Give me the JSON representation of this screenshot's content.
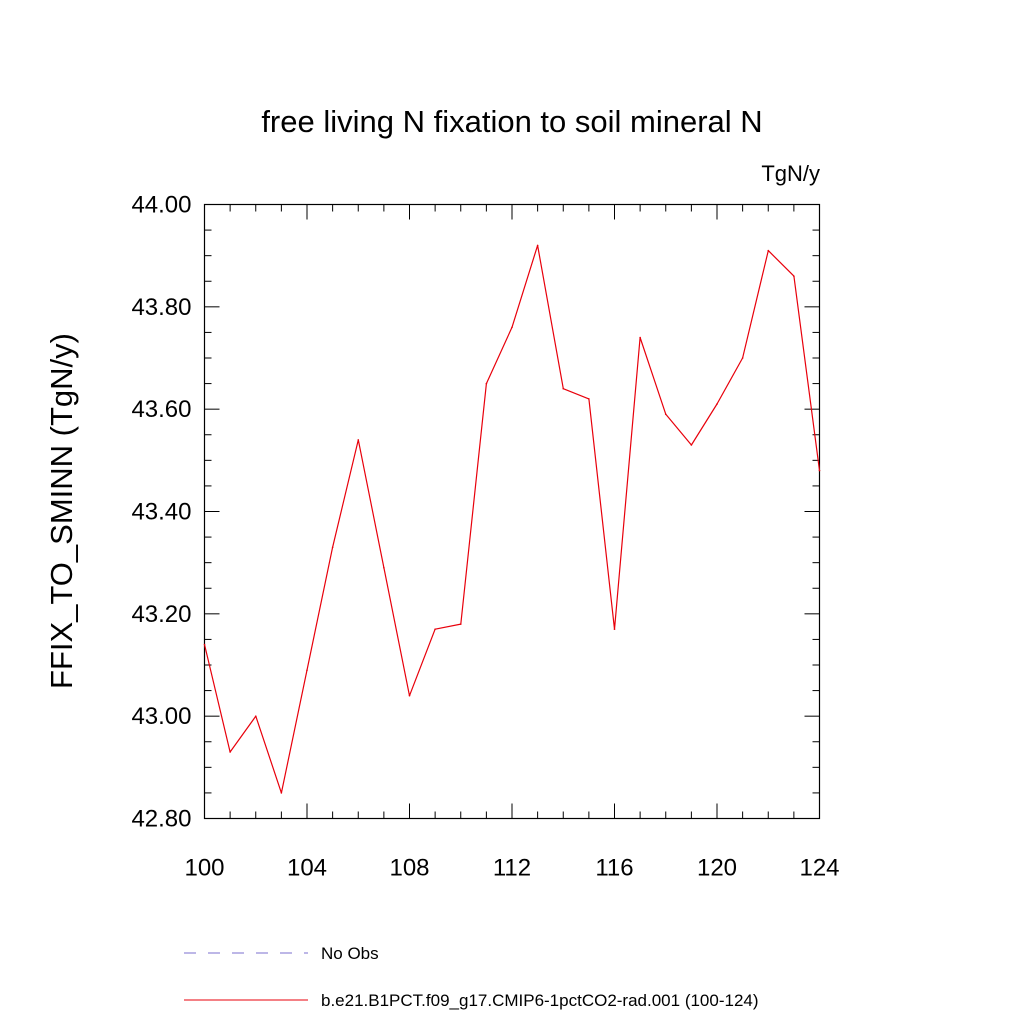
{
  "chart_data": {
    "type": "line",
    "title": "free living N fixation to soil mineral N",
    "units_label": "TgN/y",
    "ylabel": "FFIX_TO_SMINN  (TgN/y)",
    "xlabel": "",
    "xlim": [
      100,
      124
    ],
    "ylim": [
      42.8,
      44.0
    ],
    "xticks": [
      100,
      104,
      108,
      112,
      116,
      120,
      124
    ],
    "xtick_labels": [
      "100",
      "104",
      "108",
      "112",
      "116",
      "120",
      "124"
    ],
    "yticks": [
      42.8,
      43.0,
      43.2,
      43.4,
      43.6,
      43.8,
      44.0
    ],
    "ytick_labels": [
      "42.80",
      "43.00",
      "43.20",
      "43.40",
      "43.60",
      "43.80",
      "44.00"
    ],
    "grid": false,
    "legend_placement": "bottom",
    "series": [
      {
        "name": "b.e21.B1PCT.f09_g17.CMIP6-1pctCO2-rad.001 (100-124)",
        "color": "#e8000b",
        "style": "solid",
        "x": [
          100,
          101,
          102,
          103,
          104,
          105,
          106,
          107,
          108,
          109,
          110,
          111,
          112,
          113,
          114,
          115,
          116,
          117,
          118,
          119,
          120,
          121,
          122,
          123,
          124
        ],
        "y": [
          43.14,
          42.93,
          43.0,
          42.85,
          43.09,
          43.33,
          43.54,
          43.29,
          43.04,
          43.17,
          43.18,
          43.65,
          43.76,
          43.92,
          43.64,
          43.62,
          43.17,
          43.74,
          43.59,
          43.53,
          43.61,
          43.7,
          43.91,
          43.86,
          43.48
        ]
      }
    ],
    "legend": [
      {
        "label": "No Obs",
        "color": "#7b6fcf",
        "style": "dashed"
      },
      {
        "label": "b.e21.B1PCT.f09_g17.CMIP6-1pctCO2-rad.001 (100-124)",
        "color": "#e8000b",
        "style": "solid"
      }
    ]
  }
}
